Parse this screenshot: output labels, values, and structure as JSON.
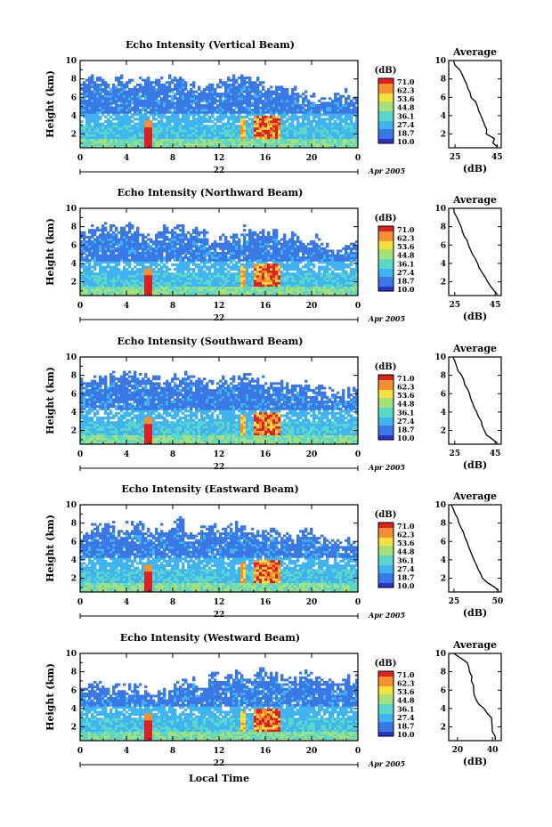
{
  "figure": {
    "xlabel_bottom": "Local Time",
    "date_day": "22",
    "date_month_year": "Apr 2005",
    "colorbar_unit": "(dB)",
    "colorbar_levels": [
      "71.0",
      "62.3",
      "53.6",
      "44.8",
      "36.1",
      "27.4",
      "18.7",
      "10.0"
    ],
    "colors": [
      "#3030c8",
      "#3a78e6",
      "#40b4f0",
      "#5ad7c8",
      "#a6e07a",
      "#f6e040",
      "#f59030",
      "#e02020"
    ]
  },
  "chart_data": [
    {
      "type": "heatmap",
      "title": "Echo Intensity (Vertical Beam)",
      "ylabel": "Height (km)",
      "xticks": [
        "0",
        "4",
        "8",
        "12",
        "16",
        "20",
        "0"
      ],
      "yticks": [
        "2",
        "4",
        "6",
        "8",
        "10"
      ],
      "xlim": [
        0,
        24
      ],
      "ylim": [
        0.5,
        10
      ],
      "top_km": [
        8.0,
        8.3,
        8.0,
        8.2,
        7.8,
        8.3,
        8.0,
        8.2,
        8.5,
        7.6,
        7.0,
        7.5,
        8.0,
        8.3,
        8.1,
        7.8,
        7.2,
        7.0,
        6.8,
        6.5,
        6.0,
        6.3,
        6.8,
        6.0,
        5.5
      ],
      "average": {
        "title": "Average",
        "xlabel": "(dB)",
        "xticks": [
          "25",
          "45"
        ],
        "xlim": [
          22,
          47
        ],
        "yticks": [
          "2",
          "4",
          "6",
          "8",
          "10"
        ],
        "height": [
          10,
          9.5,
          9,
          8.5,
          8,
          7.5,
          7,
          6.5,
          6,
          5.5,
          5,
          4.5,
          4,
          3.5,
          3,
          2.5,
          2,
          1.5,
          1,
          0.6
        ],
        "db": [
          24,
          25,
          27,
          28,
          29,
          30,
          31,
          32,
          33,
          35,
          36,
          36,
          37,
          38,
          39,
          40,
          40,
          44,
          43,
          45
        ]
      }
    },
    {
      "type": "heatmap",
      "title": "Echo Intensity (Northward Beam)",
      "ylabel": "Height (km)",
      "xticks": [
        "0",
        "4",
        "8",
        "12",
        "16",
        "20",
        "0"
      ],
      "yticks": [
        "2",
        "4",
        "6",
        "8",
        "10"
      ],
      "xlim": [
        0,
        24
      ],
      "ylim": [
        0.5,
        10
      ],
      "top_km": [
        7.5,
        8.0,
        8.3,
        8.0,
        8.2,
        7.5,
        7.0,
        8.0,
        8.2,
        7.5,
        7.8,
        6.5,
        7.0,
        7.3,
        7.8,
        8.0,
        7.5,
        6.8,
        7.2,
        6.5,
        6.8,
        6.0,
        5.8,
        6.5,
        6.0
      ],
      "average": {
        "title": "Average",
        "xlabel": "(dB)",
        "xticks": [
          "25",
          "45"
        ],
        "xlim": [
          22,
          48
        ],
        "yticks": [
          "2",
          "4",
          "6",
          "8",
          "10"
        ],
        "height": [
          10,
          9.5,
          9,
          8.5,
          8,
          7.5,
          7,
          6.5,
          6,
          5.5,
          5,
          4.5,
          4,
          3.5,
          3,
          2.5,
          2,
          1.5,
          1,
          0.6
        ],
        "db": [
          24,
          25,
          26,
          27,
          28,
          29,
          30,
          31,
          32,
          33,
          34,
          35,
          36,
          37,
          39,
          40,
          41,
          43,
          45,
          46
        ]
      }
    },
    {
      "type": "heatmap",
      "title": "Echo Intensity (Southward Beam)",
      "ylabel": "Height (km)",
      "xticks": [
        "0",
        "4",
        "8",
        "12",
        "16",
        "20",
        "0"
      ],
      "yticks": [
        "2",
        "4",
        "6",
        "8",
        "10"
      ],
      "xlim": [
        0,
        24
      ],
      "ylim": [
        0.5,
        10
      ],
      "top_km": [
        7.5,
        7.8,
        8.0,
        8.2,
        8.3,
        8.0,
        7.8,
        7.5,
        8.0,
        8.2,
        7.8,
        7.5,
        7.6,
        7.8,
        8.0,
        7.8,
        7.5,
        7.3,
        7.0,
        7.2,
        6.8,
        6.5,
        6.3,
        6.6,
        6.8
      ],
      "average": {
        "title": "Average",
        "xlabel": "(dB)",
        "xticks": [
          "25",
          "45"
        ],
        "xlim": [
          22,
          48
        ],
        "yticks": [
          "2",
          "4",
          "6",
          "8",
          "10"
        ],
        "height": [
          10,
          9.5,
          9,
          8.5,
          8,
          7.5,
          7,
          6.5,
          6,
          5.5,
          5,
          4.5,
          4,
          3.5,
          3,
          2.5,
          2,
          1.5,
          1,
          0.6
        ],
        "db": [
          24,
          25,
          26,
          27,
          28,
          29,
          30,
          31,
          32,
          33,
          34,
          35,
          36,
          37,
          38,
          39,
          40,
          41,
          44,
          46
        ]
      }
    },
    {
      "type": "heatmap",
      "title": "Echo Intensity (Eastward Beam)",
      "ylabel": "Height (km)",
      "xticks": [
        "0",
        "4",
        "8",
        "12",
        "16",
        "20",
        "0"
      ],
      "yticks": [
        "2",
        "4",
        "6",
        "8",
        "10"
      ],
      "xlim": [
        0,
        24
      ],
      "ylim": [
        0.5,
        10
      ],
      "top_km": [
        7.0,
        7.8,
        8.0,
        7.5,
        8.0,
        7.8,
        7.3,
        7.5,
        8.5,
        7.0,
        7.5,
        7.8,
        7.5,
        8.0,
        7.6,
        7.0,
        7.3,
        7.0,
        6.5,
        7.5,
        6.8,
        6.5,
        6.0,
        6.3,
        6.5
      ],
      "average": {
        "title": "Average",
        "xlabel": "(dB)",
        "xticks": [
          "25",
          "50"
        ],
        "xlim": [
          22,
          52
        ],
        "yticks": [
          "2",
          "4",
          "6",
          "8",
          "10"
        ],
        "height": [
          10,
          9.5,
          9,
          8.5,
          8,
          7.5,
          7,
          6.5,
          6,
          5.5,
          5,
          4.5,
          4,
          3.5,
          3,
          2.5,
          2,
          1.5,
          1,
          0.6
        ],
        "db": [
          24,
          25,
          26,
          27,
          28,
          29,
          30,
          31,
          32,
          33,
          34,
          35,
          36,
          38,
          39,
          40,
          41,
          44,
          48,
          50
        ]
      }
    },
    {
      "type": "heatmap",
      "title": "Echo Intensity (Westward Beam)",
      "ylabel": "Height (km)",
      "xticks": [
        "0",
        "4",
        "8",
        "12",
        "16",
        "20",
        "0"
      ],
      "yticks": [
        "2",
        "4",
        "6",
        "8",
        "10"
      ],
      "xlim": [
        0,
        24
      ],
      "ylim": [
        0.5,
        10
      ],
      "top_km": [
        6.5,
        6.8,
        6.3,
        6.8,
        6.5,
        6.3,
        5.5,
        6.0,
        7.0,
        7.5,
        6.5,
        7.8,
        7.5,
        8.0,
        7.5,
        8.3,
        7.8,
        7.5,
        7.5,
        8.0,
        7.5,
        7.3,
        7.0,
        7.6,
        7.3
      ],
      "average": {
        "title": "Average",
        "xlabel": "(dB)",
        "xticks": [
          "20",
          "40"
        ],
        "xlim": [
          15,
          45
        ],
        "yticks": [
          "2",
          "4",
          "6",
          "8",
          "10"
        ],
        "height": [
          10,
          9.5,
          9,
          8.5,
          8,
          7.5,
          7,
          6.5,
          6,
          5.5,
          5,
          4.5,
          4,
          3.5,
          3,
          2.5,
          2,
          1.5,
          1,
          0.6
        ],
        "db": [
          18,
          22,
          25,
          27,
          27,
          28,
          28,
          29,
          29,
          30,
          31,
          32,
          35,
          37,
          39,
          40,
          40,
          40,
          41,
          42
        ]
      }
    }
  ]
}
